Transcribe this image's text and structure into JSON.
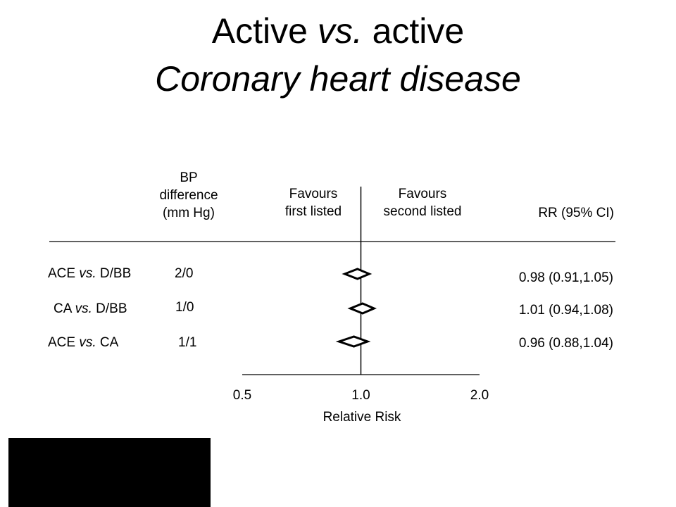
{
  "title": {
    "line1_a": "Active ",
    "line1_b": "vs.",
    "line1_c": " active",
    "line2": "Coronary heart disease"
  },
  "headers": {
    "bp": [
      "BP",
      "difference",
      "(mm Hg)"
    ],
    "favours_first": [
      "Favours",
      "first listed"
    ],
    "favours_second": [
      "Favours",
      "second listed"
    ],
    "rr": "RR (95% CI)"
  },
  "chart_data": {
    "type": "forest",
    "title": "Active vs. active Coronary heart disease",
    "xlabel": "Relative Risk",
    "x_scale": "log",
    "xlim": [
      0.5,
      2.0
    ],
    "ticks": [
      "0.5",
      "1.0",
      "2.0"
    ],
    "reference_line": 1.0,
    "rows": [
      {
        "a": "ACE ",
        "vs": "vs.",
        "b": " D/BB",
        "bp": "2/0",
        "rr": 0.98,
        "lo": 0.91,
        "hi": 1.05,
        "rr_text": "0.98 (0.91,1.05)"
      },
      {
        "a": "CA ",
        "vs": "vs.",
        "b": " D/BB",
        "bp": "1/0",
        "rr": 1.01,
        "lo": 0.94,
        "hi": 1.08,
        "rr_text": "1.01 (0.94,1.08)"
      },
      {
        "a": "ACE ",
        "vs": "vs.",
        "b": " CA",
        "bp": "1/1",
        "rr": 0.96,
        "lo": 0.88,
        "hi": 1.04,
        "rr_text": "0.96 (0.88,1.04)"
      }
    ]
  }
}
